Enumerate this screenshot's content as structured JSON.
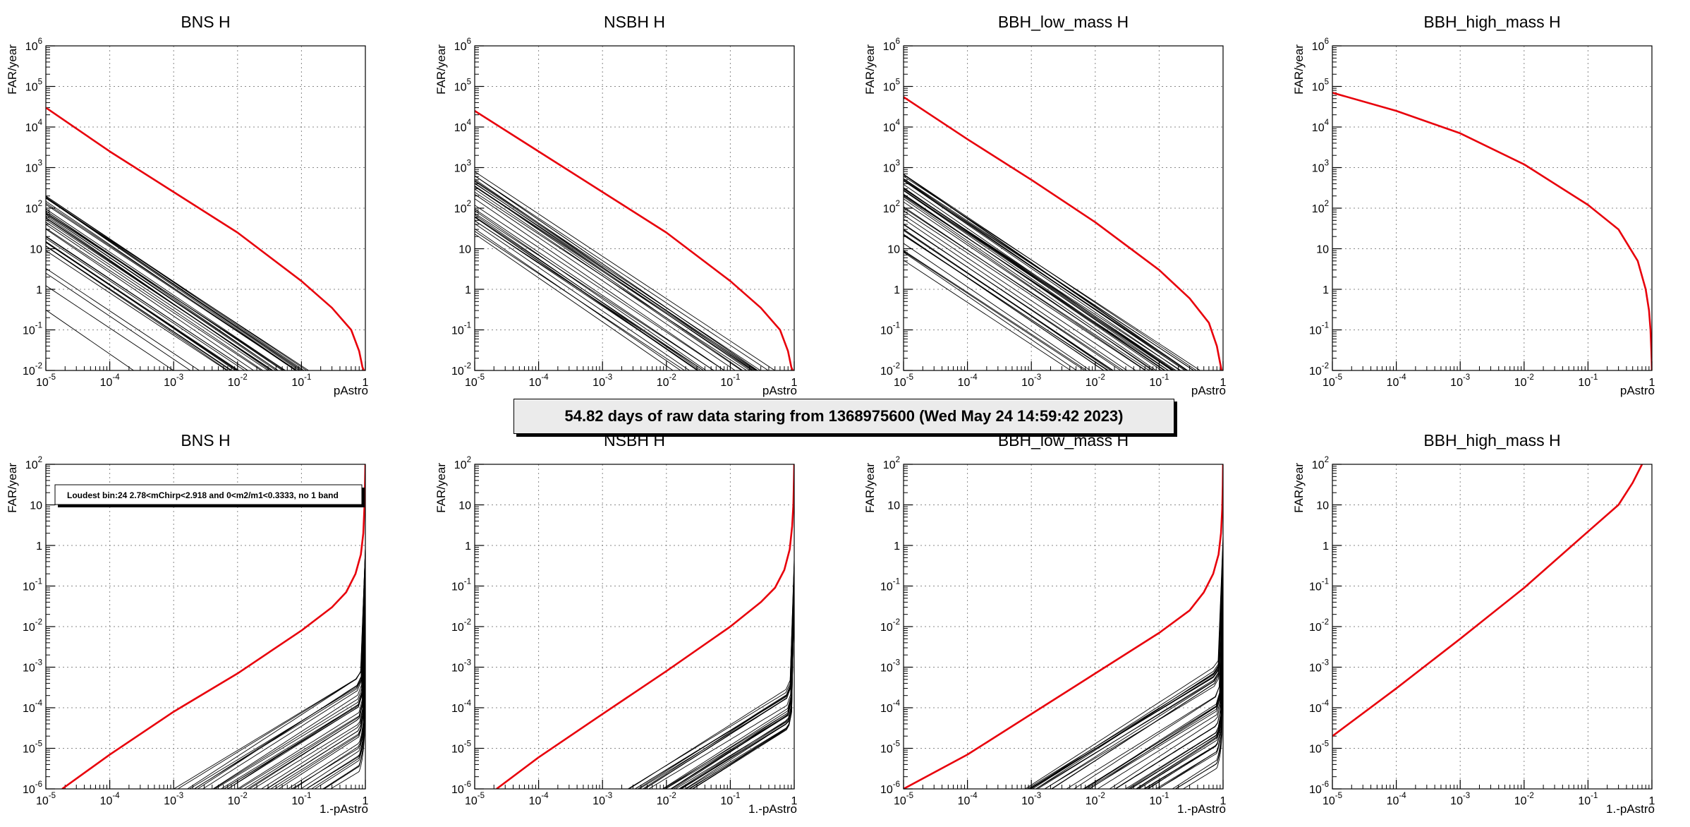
{
  "banner": "54.82 days of raw data staring from 1368975600 (Wed May 24 14:59:42 2023)",
  "styles": {
    "main_curve_color": "#e8000b",
    "bg_curve_color": "#000000",
    "grid": "dotted"
  },
  "chart_data": [
    {
      "type": "line",
      "title": "BNS H",
      "xlabel": "pAstro",
      "ylabel": "FAR/year",
      "xscale": "log",
      "yscale": "log",
      "xlim": [
        1e-05,
        1
      ],
      "ylim": [
        0.01,
        1000000
      ],
      "grid": true,
      "x_ticks": [
        "10^-5",
        "10^-4",
        "10^-3",
        "10^-2",
        "10^-1",
        "1"
      ],
      "y_ticks": [
        "10^-2",
        "10^-1",
        "1",
        "10",
        "10^2",
        "10^3",
        "10^4",
        "10^5",
        "10^6"
      ],
      "series": [
        {
          "x": [
            1e-05,
            0.0001,
            0.001,
            0.01,
            0.1,
            0.3,
            0.6,
            0.8,
            0.9,
            0.95
          ],
          "y": [
            30000,
            2500,
            250,
            25,
            1.6,
            0.35,
            0.1,
            0.03,
            0.012,
            0.01
          ]
        }
      ],
      "background_curves": {
        "count": 40,
        "top_start_y": 250,
        "bottom_start_y": 0.3
      }
    },
    {
      "type": "line",
      "title": "NSBH H",
      "xlabel": "pAstro",
      "ylabel": "FAR/year",
      "xscale": "log",
      "yscale": "log",
      "xlim": [
        1e-05,
        1
      ],
      "ylim": [
        0.01,
        1000000
      ],
      "grid": true,
      "x_ticks": [
        "10^-5",
        "10^-4",
        "10^-3",
        "10^-2",
        "10^-1",
        "1"
      ],
      "y_ticks": [
        "10^-2",
        "10^-1",
        "1",
        "10",
        "10^2",
        "10^3",
        "10^4",
        "10^5",
        "10^6"
      ],
      "series": [
        {
          "x": [
            1e-05,
            0.0001,
            0.001,
            0.01,
            0.1,
            0.3,
            0.6,
            0.8,
            0.9,
            0.95
          ],
          "y": [
            25000,
            2500,
            250,
            25,
            1.6,
            0.35,
            0.1,
            0.03,
            0.012,
            0.01
          ]
        }
      ],
      "background_curves": {
        "count": 30,
        "top_start_y": 800,
        "bottom_start_y": 20
      }
    },
    {
      "type": "line",
      "title": "BBH_low_mass H",
      "xlabel": "pAstro",
      "ylabel": "FAR/year",
      "xscale": "log",
      "yscale": "log",
      "xlim": [
        1e-05,
        1
      ],
      "ylim": [
        0.01,
        1000000
      ],
      "grid": true,
      "x_ticks": [
        "10^-5",
        "10^-4",
        "10^-3",
        "10^-2",
        "10^-1",
        "1"
      ],
      "y_ticks": [
        "10^-2",
        "10^-1",
        "1",
        "10",
        "10^2",
        "10^3",
        "10^4",
        "10^5",
        "10^6"
      ],
      "series": [
        {
          "x": [
            1e-05,
            0.0001,
            0.001,
            0.01,
            0.1,
            0.3,
            0.6,
            0.8,
            0.9,
            0.95
          ],
          "y": [
            55000,
            5000,
            500,
            45,
            3,
            0.6,
            0.15,
            0.04,
            0.015,
            0.01
          ]
        }
      ],
      "background_curves": {
        "count": 45,
        "top_start_y": 700,
        "bottom_start_y": 2
      }
    },
    {
      "type": "line",
      "title": "BBH_high_mass H",
      "xlabel": "pAstro",
      "ylabel": "FAR/year",
      "xscale": "log",
      "yscale": "log",
      "xlim": [
        1e-05,
        1
      ],
      "ylim": [
        0.01,
        1000000
      ],
      "grid": true,
      "x_ticks": [
        "10^-5",
        "10^-4",
        "10^-3",
        "10^-2",
        "10^-1",
        "1"
      ],
      "y_ticks": [
        "10^-2",
        "10^-1",
        "1",
        "10",
        "10^2",
        "10^3",
        "10^4",
        "10^5",
        "10^6"
      ],
      "series": [
        {
          "x": [
            1e-05,
            0.0001,
            0.001,
            0.01,
            0.1,
            0.3,
            0.6,
            0.8,
            0.9,
            0.95,
            0.98,
            0.995,
            1
          ],
          "y": [
            70000,
            25000,
            7000,
            1200,
            120,
            30,
            5,
            1,
            0.3,
            0.1,
            0.03,
            0.015,
            0.01
          ]
        }
      ],
      "background_curves": {
        "count": 0
      }
    },
    {
      "type": "line",
      "title": "BNS H",
      "xlabel": "1.-pAstro",
      "ylabel": "FAR/year",
      "xscale": "log",
      "yscale": "log",
      "xlim": [
        1e-05,
        1
      ],
      "ylim": [
        1e-06,
        100
      ],
      "grid": true,
      "x_ticks": [
        "10^-5",
        "10^-4",
        "10^-3",
        "10^-2",
        "10^-1",
        "1"
      ],
      "y_ticks": [
        "10^-6",
        "10^-5",
        "10^-4",
        "10^-3",
        "10^-2",
        "10^-1",
        "1",
        "10",
        "10^2"
      ],
      "annotation": "Loudest bin:24 2.78<mChirp<2.918 and 0<m2/m1<0.3333, no 1 band",
      "series": [
        {
          "x": [
            1.8e-05,
            0.0001,
            0.001,
            0.01,
            0.1,
            0.3,
            0.5,
            0.7,
            0.85,
            0.93,
            0.97,
            0.99,
            1
          ],
          "y": [
            1e-06,
            7e-06,
            8e-05,
            0.0007,
            0.008,
            0.03,
            0.07,
            0.2,
            0.6,
            2,
            10,
            40,
            100
          ]
        }
      ],
      "background_curves": {
        "count": 40,
        "left_start_x": 0.001,
        "right_start_x": 0.3
      }
    },
    {
      "type": "line",
      "title": "NSBH H",
      "xlabel": "1.-pAstro",
      "ylabel": "FAR/year",
      "xscale": "log",
      "yscale": "log",
      "xlim": [
        1e-05,
        1
      ],
      "ylim": [
        1e-06,
        100
      ],
      "grid": true,
      "x_ticks": [
        "10^-5",
        "10^-4",
        "10^-3",
        "10^-2",
        "10^-1",
        "1"
      ],
      "y_ticks": [
        "10^-6",
        "10^-5",
        "10^-4",
        "10^-3",
        "10^-2",
        "10^-1",
        "1",
        "10",
        "10^2"
      ],
      "series": [
        {
          "x": [
            2.2e-05,
            0.0001,
            0.001,
            0.01,
            0.1,
            0.3,
            0.5,
            0.7,
            0.85,
            0.93,
            0.97,
            0.99,
            1
          ],
          "y": [
            1e-06,
            6e-06,
            7e-05,
            0.0008,
            0.01,
            0.04,
            0.09,
            0.25,
            0.8,
            3,
            10,
            40,
            100
          ]
        }
      ],
      "background_curves": {
        "count": 30,
        "left_start_x": 0.0025,
        "right_start_x": 0.03
      }
    },
    {
      "type": "line",
      "title": "BBH_low_mass H",
      "xlabel": "1.-pAstro",
      "ylabel": "FAR/year",
      "xscale": "log",
      "yscale": "log",
      "xlim": [
        1e-05,
        1
      ],
      "ylim": [
        1e-06,
        100
      ],
      "grid": true,
      "x_ticks": [
        "10^-5",
        "10^-4",
        "10^-3",
        "10^-2",
        "10^-1",
        "1"
      ],
      "y_ticks": [
        "10^-6",
        "10^-5",
        "10^-4",
        "10^-3",
        "10^-2",
        "10^-1",
        "1",
        "10",
        "10^2"
      ],
      "series": [
        {
          "x": [
            1e-05,
            0.0001,
            0.001,
            0.01,
            0.1,
            0.3,
            0.5,
            0.7,
            0.85,
            0.93,
            0.97,
            0.99,
            1
          ],
          "y": [
            1e-06,
            7e-06,
            7e-05,
            0.0007,
            0.007,
            0.025,
            0.07,
            0.2,
            0.6,
            2,
            8,
            30,
            100
          ]
        }
      ],
      "background_curves": {
        "count": 45,
        "left_start_x": 0.0008,
        "right_start_x": 0.25
      }
    },
    {
      "type": "line",
      "title": "BBH_high_mass H",
      "xlabel": "1.-pAstro",
      "ylabel": "FAR/year",
      "xscale": "log",
      "yscale": "log",
      "xlim": [
        1e-05,
        1
      ],
      "ylim": [
        1e-06,
        100
      ],
      "grid": true,
      "x_ticks": [
        "10^-5",
        "10^-4",
        "10^-3",
        "10^-2",
        "10^-1",
        "1"
      ],
      "y_ticks": [
        "10^-6",
        "10^-5",
        "10^-4",
        "10^-3",
        "10^-2",
        "10^-1",
        "1",
        "10",
        "10^2"
      ],
      "series": [
        {
          "x": [
            1e-05,
            0.0001,
            0.001,
            0.01,
            0.1,
            0.3,
            0.5,
            0.7
          ],
          "y": [
            2e-05,
            0.0003,
            0.005,
            0.09,
            2.2,
            10,
            35,
            100
          ]
        }
      ],
      "background_curves": {
        "count": 0
      }
    }
  ]
}
